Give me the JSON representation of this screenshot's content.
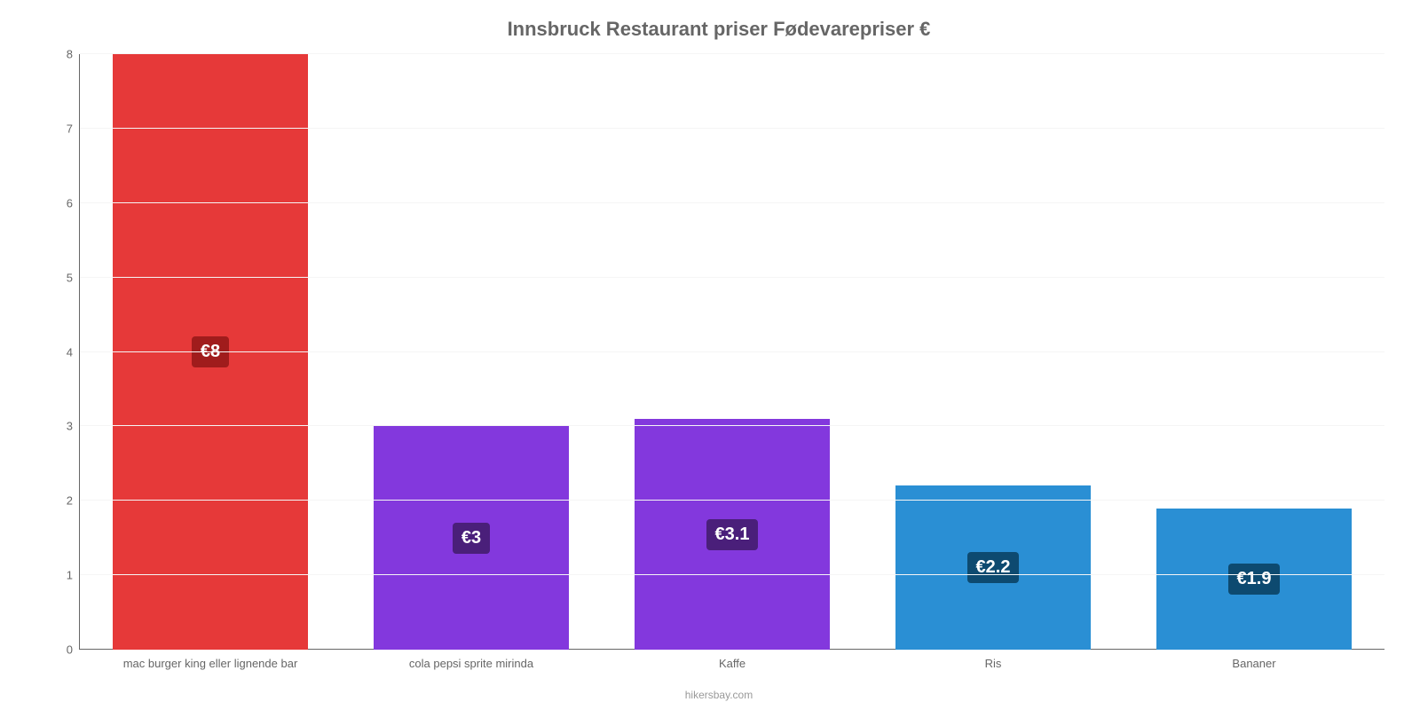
{
  "chart": {
    "type": "bar",
    "title": "Innsbruck Restaurant priser Fødevarepriser €",
    "title_fontsize": 22,
    "title_color": "#666666",
    "footer": "hikersbay.com",
    "footer_color": "#999999",
    "background_color": "#ffffff",
    "grid_color": "#f5f5f5",
    "axis_color": "#666666",
    "tick_color": "#666666",
    "label_fontsize": 13,
    "bar_label_fontsize": 20,
    "bar_width_ratio": 0.75,
    "ylim": [
      0,
      8
    ],
    "ytick_step": 1,
    "yticks": [
      0,
      1,
      2,
      3,
      4,
      5,
      6,
      7,
      8
    ],
    "categories": [
      "mac burger king eller lignende bar",
      "cola pepsi sprite mirinda",
      "Kaffe",
      "Ris",
      "Bananer"
    ],
    "values": [
      8,
      3,
      3.1,
      2.2,
      1.9
    ],
    "value_labels": [
      "€8",
      "€3",
      "€3.1",
      "€2.2",
      "€1.9"
    ],
    "bar_colors": [
      "#e63939",
      "#8338dd",
      "#8338dd",
      "#2a8fd4",
      "#2a8fd4"
    ],
    "label_bg_colors": [
      "#a01c1c",
      "#4a1f7a",
      "#4a1f7a",
      "#0d4a70",
      "#0d4a70"
    ]
  }
}
